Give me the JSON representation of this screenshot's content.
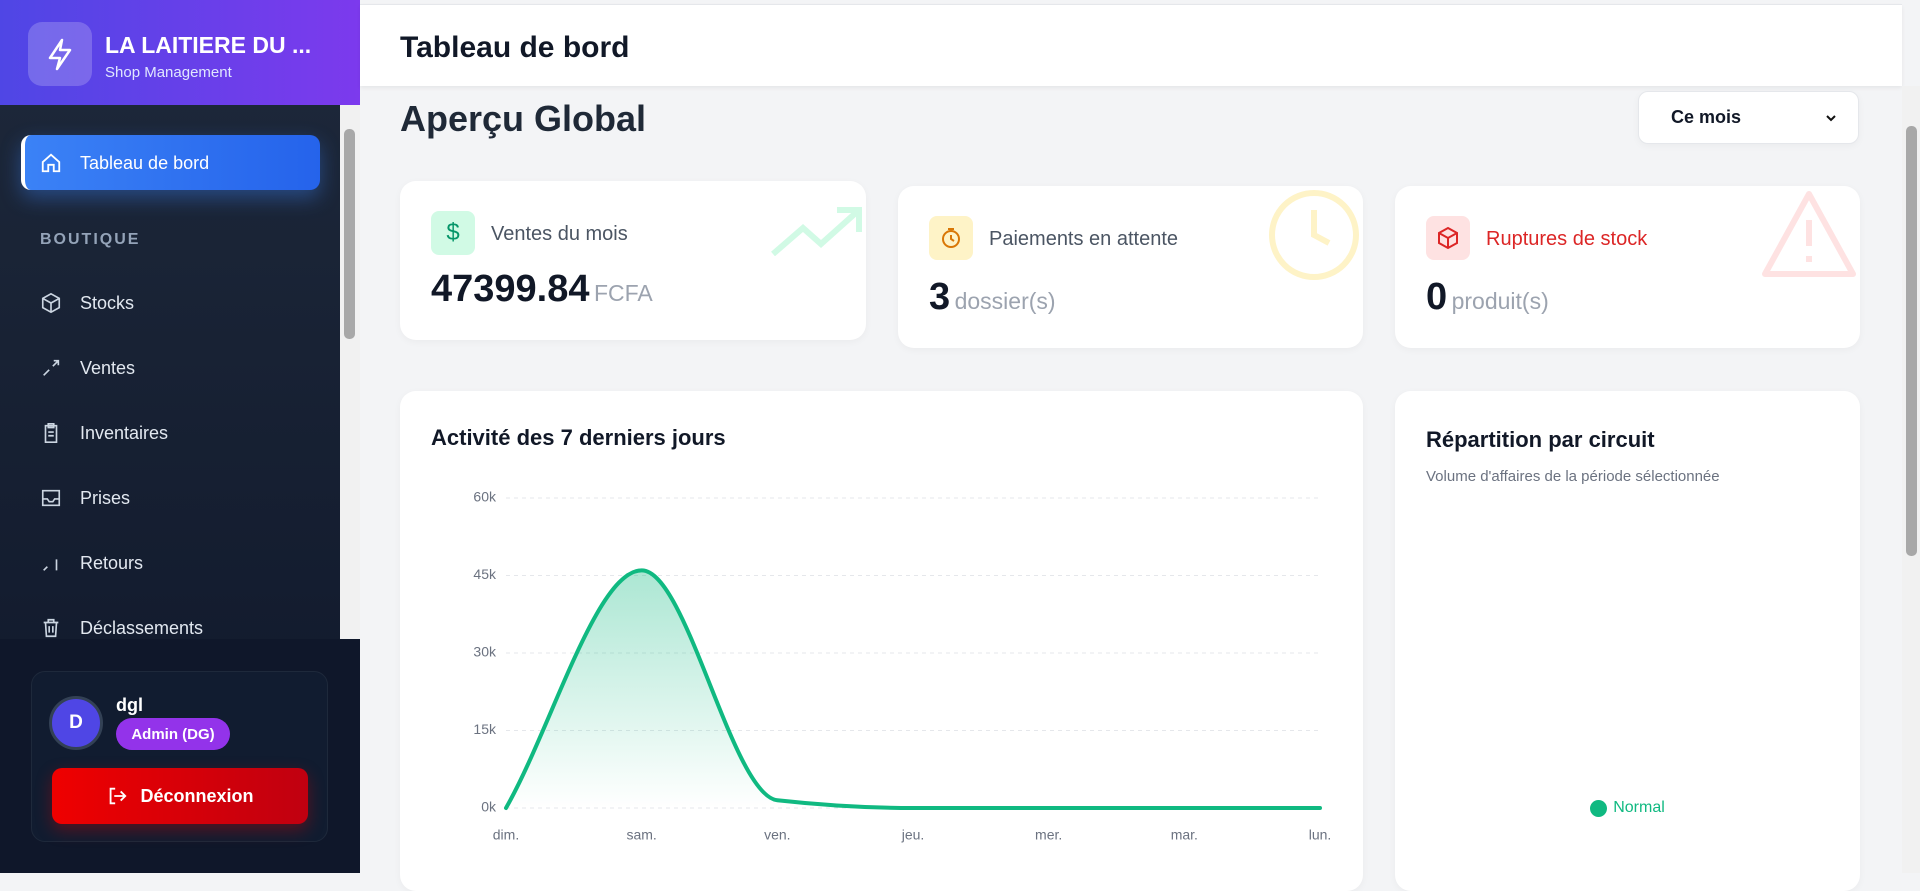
{
  "sidebar": {
    "brand": "LA LAITIERE DU ...",
    "subtitle": "Shop Management",
    "active": "Tableau de bord",
    "section": "BOUTIQUE",
    "items": [
      "Stocks",
      "Ventes",
      "Inventaires",
      "Prises",
      "Retours",
      "Déclassements"
    ],
    "user": {
      "initial": "D",
      "name": "dgl",
      "role": "Admin (DG)"
    },
    "logout": "Déconnexion"
  },
  "header": {
    "title": "Tableau de bord"
  },
  "overview": {
    "title": "Aperçu Global",
    "period": "Ce mois"
  },
  "stats": [
    {
      "label": "Ventes du mois",
      "value": 47399.84,
      "unit": "FCFA"
    },
    {
      "label": "Paiements en attente",
      "value": 3,
      "unit": "dossier(s)"
    },
    {
      "label": "Ruptures de stock",
      "value": 0,
      "unit": "produit(s)"
    }
  ],
  "chart_data": {
    "type": "line",
    "title": "Activité des 7 derniers jours",
    "categories": [
      "dim.",
      "sam.",
      "ven.",
      "jeu.",
      "mer.",
      "mar.",
      "lun."
    ],
    "values": [
      0,
      46000,
      1500,
      0,
      0,
      0,
      0
    ],
    "color": "#10b981",
    "ylim": [
      0,
      60000
    ],
    "yticks": [
      {
        "value": 0,
        "label": "0k"
      },
      {
        "value": 15000,
        "label": "15k"
      },
      {
        "value": 30000,
        "label": "30k"
      },
      {
        "value": 45000,
        "label": "45k"
      },
      {
        "value": 60000,
        "label": "60k"
      }
    ],
    "grid": true
  },
  "circuit": {
    "title": "Répartition par circuit",
    "subtitle": "Volume d'affaires de la période sélectionnée",
    "legend": [
      {
        "name": "Normal",
        "color": "#10b981"
      }
    ]
  }
}
